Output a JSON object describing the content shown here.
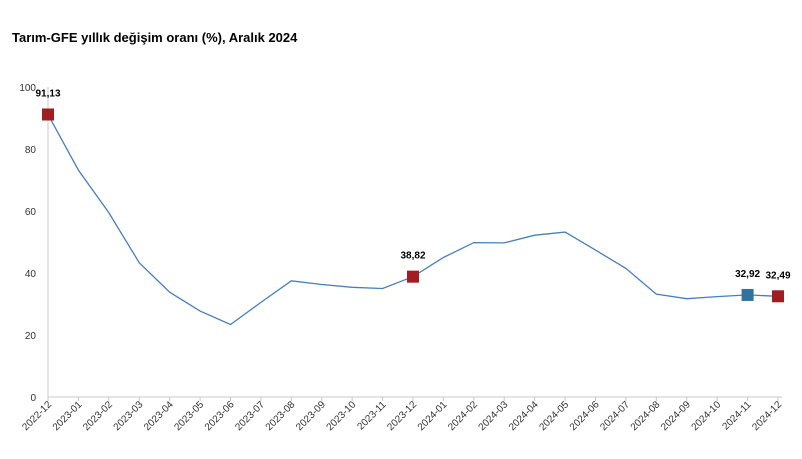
{
  "chart_data": {
    "type": "line",
    "title": "Tarım-GFE yıllık değişim oranı (%), Aralık 2024",
    "xlabel": "",
    "ylabel": "",
    "ylim": [
      0,
      100
    ],
    "yticks": [
      0,
      20,
      40,
      60,
      80,
      100
    ],
    "grid": false,
    "legend": "none",
    "line_color": "#4a7ebb",
    "categories": [
      "2022-12",
      "2023-01",
      "2023-02",
      "2023-03",
      "2023-04",
      "2023-05",
      "2023-06",
      "2023-07",
      "2023-08",
      "2023-09",
      "2023-10",
      "2023-11",
      "2023-12",
      "2024-01",
      "2024-02",
      "2024-03",
      "2024-04",
      "2024-05",
      "2024-06",
      "2024-07",
      "2024-08",
      "2024-09",
      "2024-10",
      "2024-11",
      "2024-12"
    ],
    "series": [
      {
        "values": [
          91.13,
          73.2,
          59.5,
          43.3,
          33.8,
          27.7,
          23.4,
          30.5,
          37.5,
          36.3,
          35.4,
          35.0,
          38.82,
          45.0,
          49.8,
          49.7,
          52.2,
          53.2,
          47.4,
          41.5,
          33.2,
          31.7,
          32.4,
          32.92,
          32.49
        ]
      }
    ],
    "markers": [
      {
        "index": 0,
        "label": "91,13",
        "color": "#a11d21"
      },
      {
        "index": 12,
        "label": "38,82",
        "color": "#a11d21"
      },
      {
        "index": 23,
        "label": "32,92",
        "color": "#31739f"
      },
      {
        "index": 24,
        "label": "32,49",
        "color": "#a11d21"
      }
    ]
  }
}
